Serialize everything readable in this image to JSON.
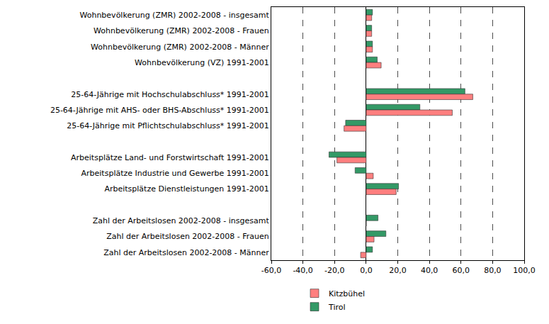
{
  "chart_data": {
    "type": "bar",
    "orientation": "horizontal",
    "grid": true,
    "legend": "bottom",
    "categories": [
      "Wohnbevölkerung (ZMR) 2002-2008 - insgesamt",
      "Wohnbevölkerung (ZMR) 2002-2008 - Frauen",
      "Wohnbevölkerung (ZMR) 2002-2008 - Männer",
      "Wohnbevölkerung (VZ) 1991-2001",
      null,
      "25-64-Jährige mit Hochschulabschluss* 1991-2001",
      "25-64-Jährige mit AHS- oder BHS-Abschluss* 1991-2001",
      "25-64-Jährige mit Pflichtschulabschluss* 1991-2001",
      null,
      "Arbeitsplätze Land- und Forstwirtschaft 1991-2001",
      "Arbeitsplätze Industrie und Gewerbe 1991-2001",
      "Arbeitsplätze Dienstleistungen 1991-2001",
      null,
      "Zahl der Arbeitslosen 2002-2008 - insgesamt",
      "Zahl der Arbeitslosen 2002-2008 - Frauen",
      "Zahl der Arbeitslosen 2002-2008 - Männer"
    ],
    "series": [
      {
        "name": "Tirol",
        "color": "#339966",
        "values": [
          4.0,
          3.5,
          4.0,
          7.0,
          null,
          62.5,
          34.0,
          -13.0,
          null,
          -23.5,
          -7.0,
          20.5,
          null,
          7.5,
          12.5,
          4.0
        ]
      },
      {
        "name": "Kitzbühel",
        "color": "#ff7f7f",
        "values": [
          3.5,
          3.5,
          4.0,
          9.5,
          null,
          67.5,
          54.5,
          -14.0,
          null,
          -18.5,
          4.5,
          19.0,
          null,
          0.0,
          5.0,
          -3.5
        ]
      }
    ],
    "xlim": [
      -60,
      100
    ],
    "xticks": [
      {
        "value": -60,
        "label": "-60,0"
      },
      {
        "value": -40,
        "label": "-40,0"
      },
      {
        "value": -20,
        "label": "-20,0"
      },
      {
        "value": 0,
        "label": "0,0"
      },
      {
        "value": 20,
        "label": "20,0"
      },
      {
        "value": 40,
        "label": "40,0"
      },
      {
        "value": 60,
        "label": "60,0"
      },
      {
        "value": 80,
        "label": "80,0"
      },
      {
        "value": 100,
        "label": "100,0"
      }
    ]
  }
}
